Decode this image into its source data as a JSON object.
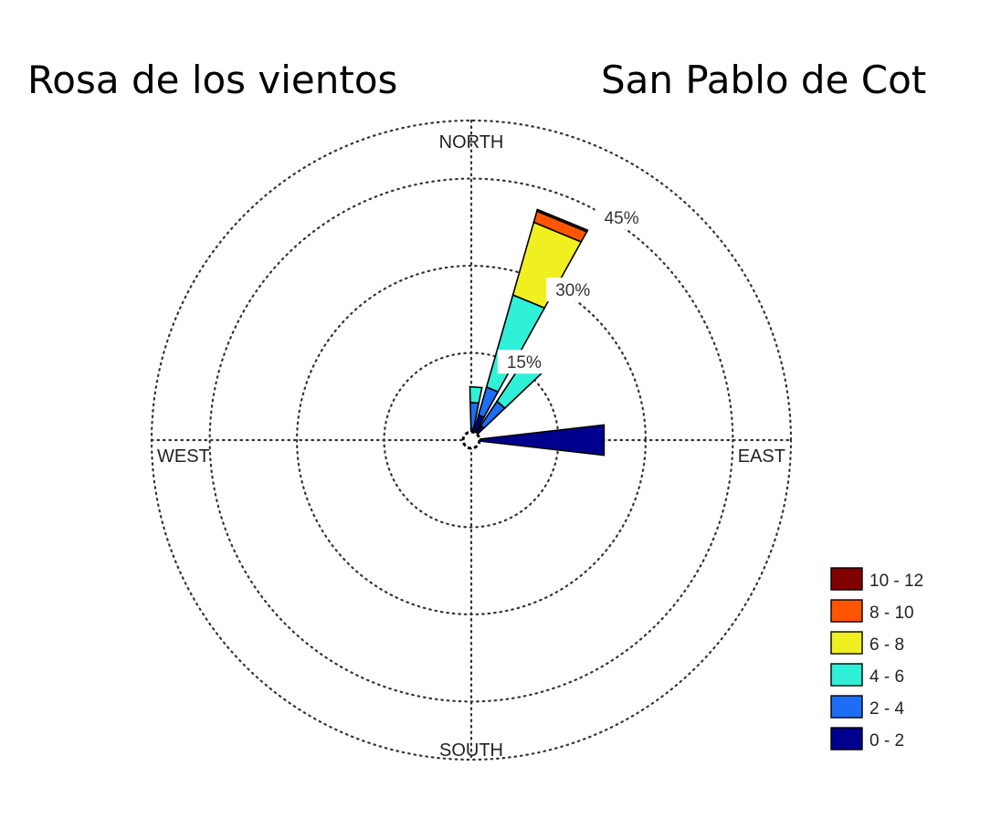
{
  "chart_data": {
    "type": "windrose",
    "title": "Rosa de los vientos",
    "subtitle": "San Pablo de Cot",
    "directions": [
      "NORTH",
      "EAST",
      "SOUTH",
      "WEST"
    ],
    "rings": [
      {
        "value": 15,
        "label": "15%"
      },
      {
        "value": 30,
        "label": "30%"
      },
      {
        "value": 45,
        "label": "45%"
      }
    ],
    "rmax": 55,
    "grid": true,
    "legend_position": "bottom-right",
    "bins": [
      {
        "label": "10 - 12",
        "color": "#800000"
      },
      {
        "label": "8 - 10",
        "color": "#ff5500"
      },
      {
        "label": "6 - 8",
        "color": "#f0f020"
      },
      {
        "label": "4 - 6",
        "color": "#30f0d8"
      },
      {
        "label": "2 - 4",
        "color": "#1e6ef5"
      },
      {
        "label": "0 - 2",
        "color": "#00008f"
      }
    ],
    "petals": [
      {
        "direction_deg": 22.5,
        "cumulative": [
          4.5,
          9.5,
          26.0,
          39.0,
          41.0,
          41.3
        ]
      },
      {
        "direction_deg": 40,
        "cumulative": [
          3.0,
          8.0,
          17.5,
          18.0,
          18.0,
          18.0
        ]
      },
      {
        "direction_deg": 5,
        "cumulative": [
          2.0,
          6.5,
          9.2,
          9.2,
          9.2,
          9.2
        ]
      },
      {
        "direction_deg": 90,
        "cumulative": [
          23.0,
          23.0,
          23.0,
          23.0,
          23.0,
          23.0
        ]
      }
    ]
  }
}
